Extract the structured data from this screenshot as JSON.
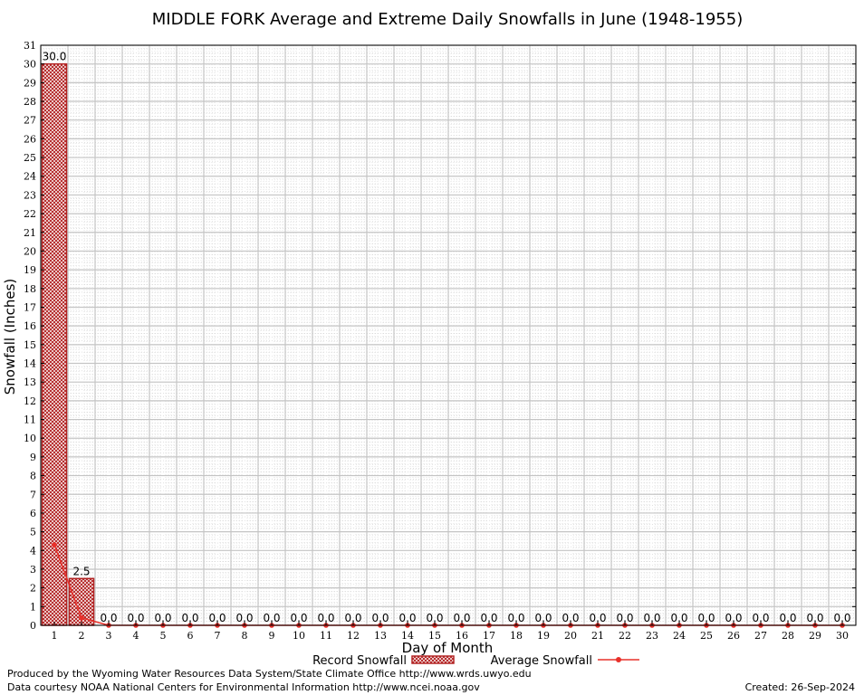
{
  "chart_data": {
    "type": "bar",
    "title": "MIDDLE FORK Average and Extreme Daily Snowfalls in June (1948-1955)",
    "xlabel": "Day of Month",
    "ylabel": "Snowfall (Inches)",
    "ylim": [
      0,
      31
    ],
    "xlim": [
      0.5,
      30.5
    ],
    "grid": true,
    "categories": [
      1,
      2,
      3,
      4,
      5,
      6,
      7,
      8,
      9,
      10,
      11,
      12,
      13,
      14,
      15,
      16,
      17,
      18,
      19,
      20,
      21,
      22,
      23,
      24,
      25,
      26,
      27,
      28,
      29,
      30
    ],
    "series": [
      {
        "name": "Record Snowfall",
        "kind": "bar",
        "color": "#b22222",
        "values": [
          30.0,
          2.5,
          0,
          0,
          0,
          0,
          0,
          0,
          0,
          0,
          0,
          0,
          0,
          0,
          0,
          0,
          0,
          0,
          0,
          0,
          0,
          0,
          0,
          0,
          0,
          0,
          0,
          0,
          0,
          0
        ],
        "labels": [
          "30.0",
          "2.5",
          "0.0",
          "0.0",
          "0.0",
          "0.0",
          "0.0",
          "0.0",
          "0.0",
          "0.0",
          "0.0",
          "0.0",
          "0.0",
          "0.0",
          "0.0",
          "0.0",
          "0.0",
          "0.0",
          "0.0",
          "0.0",
          "0.0",
          "0.0",
          "0.0",
          "0.0",
          "0.0",
          "0.0",
          "0.0",
          "0.0",
          "0.0",
          "0.0"
        ]
      },
      {
        "name": "Average Snowfall",
        "kind": "line",
        "color": "#e8302a",
        "values": [
          4.3,
          0.4,
          0,
          0,
          0,
          0,
          0,
          0,
          0,
          0,
          0,
          0,
          0,
          0,
          0,
          0,
          0,
          0,
          0,
          0,
          0,
          0,
          0,
          0,
          0,
          0,
          0,
          0,
          0,
          0
        ]
      }
    ],
    "yticks": [
      0,
      1,
      2,
      3,
      4,
      5,
      6,
      7,
      8,
      9,
      10,
      11,
      12,
      13,
      14,
      15,
      16,
      17,
      18,
      19,
      20,
      21,
      22,
      23,
      24,
      25,
      26,
      27,
      28,
      29,
      30,
      31
    ],
    "legend_position": "bottom-center"
  },
  "footer": {
    "line1": "Produced by the Wyoming Water Resources Data System/State Climate Office http://www.wrds.uwyo.edu",
    "line2": "Data courtesy NOAA National Centers for Environmental Information http://www.ncei.noaa.gov",
    "created": "Created:  26-Sep-2024"
  }
}
